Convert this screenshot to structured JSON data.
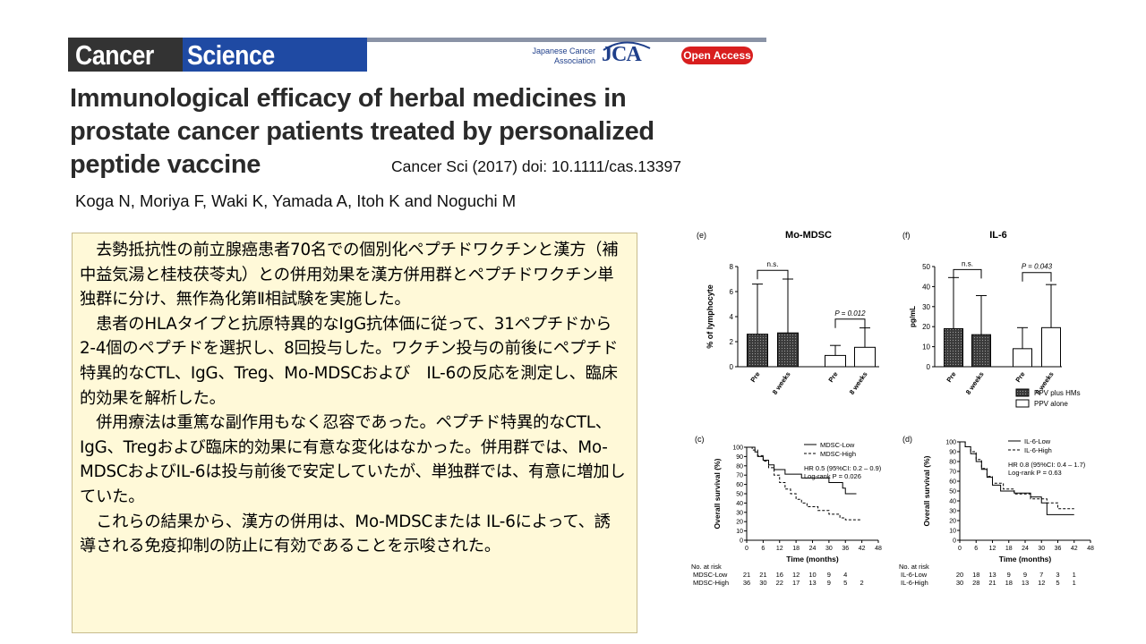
{
  "header": {
    "journal_part1": "Cancer",
    "journal_part2": "Science",
    "society_line1": "Japanese Cancer",
    "society_line2": "Association",
    "society_logo": "JCA",
    "open_access": "Open Access"
  },
  "paper": {
    "title_line1": "Immunological efficacy of herbal medicines in",
    "title_line2": "prostate cancer patients treated by personalized",
    "title_line3": "peptide vaccine",
    "citation": "Cancer Sci (2017) doi: 10.1111/cas.13397",
    "authors": "Koga N, Moriya F, Waki K, Yamada A,  Itoh K and Noguchi M"
  },
  "summary": {
    "p1": "　去勢抵抗性の前立腺癌患者70名での個別化ペプチドワクチンと漢方（補中益気湯と桂枝茯苓丸）との併用効果を漢方併用群とペプチドワクチン単独群に分け、無作為化第Ⅱ相試験を実施した。",
    "p2": "　患者のHLAタイプと抗原特異的なIgG抗体価に従って、31ペプチドから2-4個のペプチドを選択し、8回投与した。ワクチン投与の前後にペプチド特異的なCTL、IgG、Treg、Mo-MDSCおよび　IL-6の反応を測定し、臨床的効果を解析した。",
    "p3": "　併用療法は重篤な副作用もなく忍容であった。ペプチド特異的なCTL、IgG、Tregおよび臨床的効果に有意な変化はなかった。併用群では、Mo-MDSCおよびIL-6は投与前後で安定していたが、単独群では、有意に増加していた。",
    "p4": "　これらの結果から、漢方の併用は、Mo-MDSCまたは IL-6によって、誘導される免疫抑制の防止に有効であることを示唆された。"
  },
  "chart_data": [
    {
      "type": "bar",
      "panel": "(e)",
      "title": "Mo-MDSC",
      "ylabel": "% of lymphocyte",
      "ylim": [
        0,
        8
      ],
      "yticks": [
        0,
        2,
        4,
        6,
        8
      ],
      "categories": [
        "Pre",
        "8 weeks",
        "Pre",
        "8 weeks"
      ],
      "groups": [
        "PPV plus HMs",
        "PPV plus HMs",
        "PPV alone",
        "PPV alone"
      ],
      "values": [
        2.6,
        2.7,
        0.9,
        1.55
      ],
      "errors": [
        4.0,
        4.3,
        0.8,
        1.55
      ],
      "annotations": [
        "n.s.",
        "P = 0.012"
      ]
    },
    {
      "type": "bar",
      "panel": "(f)",
      "title": "IL-6",
      "ylabel": "pg/mL",
      "ylim": [
        0,
        50
      ],
      "yticks": [
        0,
        10,
        20,
        30,
        40,
        50
      ],
      "categories": [
        "Pre",
        "8 weeks",
        "Pre",
        "8 weeks"
      ],
      "groups": [
        "PPV plus HMs",
        "PPV plus HMs",
        "PPV alone",
        "PPV alone"
      ],
      "values": [
        19,
        16,
        9,
        19.5
      ],
      "errors": [
        25.5,
        19.5,
        10.5,
        21.5
      ],
      "annotations": [
        "n.s.",
        "P = 0.043"
      ],
      "legend": [
        "PPV plus HMs",
        "PPV alone"
      ]
    },
    {
      "type": "line",
      "panel": "(c)",
      "xlabel": "Time (months)",
      "ylabel": "Overall survival (%)",
      "xlim": [
        0,
        48
      ],
      "ylim": [
        0,
        100
      ],
      "xticks": [
        0,
        6,
        12,
        18,
        24,
        30,
        36,
        42,
        48
      ],
      "yticks": [
        0,
        10,
        20,
        30,
        40,
        50,
        60,
        70,
        80,
        90,
        100
      ],
      "series": [
        {
          "name": "MDSC-Low",
          "x": [
            0,
            3,
            4,
            6,
            8,
            10,
            14,
            20,
            30,
            35,
            36,
            40
          ],
          "y": [
            100,
            95,
            90,
            86,
            81,
            76,
            71,
            67,
            62,
            56,
            50,
            50
          ]
        },
        {
          "name": "MDSC-High",
          "x": [
            0,
            2,
            4,
            6,
            8,
            10,
            12,
            14,
            16,
            18,
            20,
            22,
            26,
            30,
            34,
            36,
            42
          ],
          "y": [
            100,
            97,
            91,
            85,
            78,
            70,
            62,
            55,
            50,
            44,
            40,
            36,
            32,
            28,
            24,
            22,
            22
          ]
        }
      ],
      "annotations": [
        "HR 0.5 (95%CI: 0.2 – 0.9)",
        "Log-rank P = 0.026"
      ],
      "risk_table": {
        "label": "No. at risk",
        "rows": [
          {
            "name": "MDSC-Low",
            "counts": [
              "21",
              "21",
              "16",
              "12",
              "10",
              "9",
              "4"
            ]
          },
          {
            "name": "MDSC-High",
            "counts": [
              "36",
              "30",
              "22",
              "17",
              "13",
              "9",
              "5",
              "2"
            ]
          }
        ]
      }
    },
    {
      "type": "line",
      "panel": "(d)",
      "xlabel": "Time (months)",
      "ylabel": "Overall survival (%)",
      "xlim": [
        0,
        48
      ],
      "ylim": [
        0,
        100
      ],
      "xticks": [
        0,
        6,
        12,
        18,
        24,
        30,
        36,
        42,
        48
      ],
      "yticks": [
        0,
        10,
        20,
        30,
        40,
        50,
        60,
        70,
        80,
        90,
        100
      ],
      "series": [
        {
          "name": "IL-6-Low",
          "x": [
            0,
            2,
            4,
            6,
            8,
            10,
            12,
            15,
            20,
            26,
            30,
            32,
            42
          ],
          "y": [
            100,
            95,
            88,
            80,
            72,
            64,
            56,
            50,
            48,
            44,
            38,
            26,
            26
          ]
        },
        {
          "name": "IL-6-High",
          "x": [
            0,
            2,
            4,
            6,
            8,
            10,
            12,
            16,
            20,
            26,
            32,
            36,
            42
          ],
          "y": [
            100,
            95,
            90,
            82,
            73,
            65,
            58,
            52,
            47,
            42,
            38,
            32,
            32
          ]
        }
      ],
      "annotations": [
        "HR 0.8 (95%CI: 0.4 – 1.7)",
        "Log-rank P = 0.63"
      ],
      "risk_table": {
        "label": "No. at risk",
        "rows": [
          {
            "name": "IL-6-Low",
            "counts": [
              "20",
              "18",
              "13",
              "9",
              "9",
              "7",
              "3",
              "1"
            ]
          },
          {
            "name": "IL-6-High",
            "counts": [
              "30",
              "28",
              "21",
              "18",
              "13",
              "12",
              "5",
              "1"
            ]
          }
        ]
      }
    }
  ]
}
